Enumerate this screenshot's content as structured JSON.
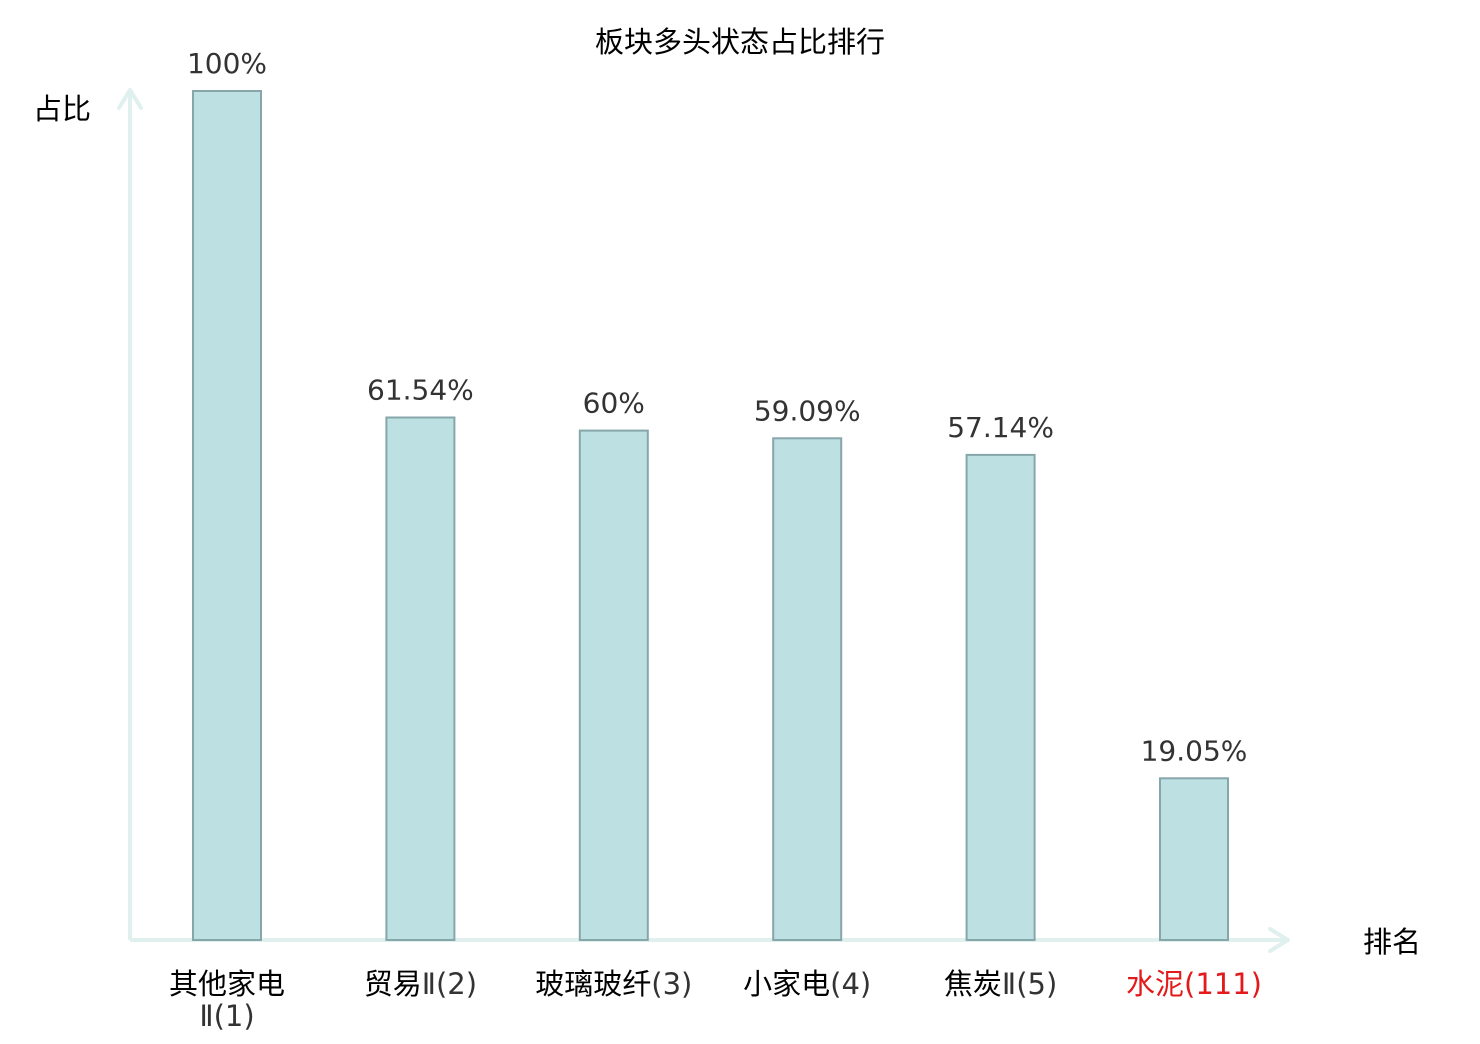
{
  "chart_data": {
    "type": "bar",
    "title": "板块多头状态占比排行",
    "ylabel": "占比",
    "xlabel": "排名",
    "ylim": [
      0,
      100
    ],
    "grid": false,
    "categories": [
      "其他家电Ⅱ(1)",
      "贸易Ⅱ(2)",
      "玻璃玻纤(3)",
      "小家电(4)",
      "焦炭Ⅱ(5)",
      "水泥(111)"
    ],
    "category_lines": [
      [
        {
          "text": "其他家电",
          "cjk": true
        },
        {
          "text": "Ⅱ(1)",
          "cjk": false
        }
      ],
      [
        {
          "text": "贸易",
          "cjk": true
        },
        {
          "text": "Ⅱ(2)",
          "cjk": false
        }
      ],
      [
        {
          "text": "玻璃玻纤",
          "cjk": true
        },
        {
          "text": "(3)",
          "cjk": false
        }
      ],
      [
        {
          "text": "小家电",
          "cjk": true
        },
        {
          "text": "(4)",
          "cjk": false
        }
      ],
      [
        {
          "text": "焦炭",
          "cjk": true
        },
        {
          "text": "Ⅱ(5)",
          "cjk": false
        }
      ],
      [
        {
          "text": "水泥",
          "cjk": true
        },
        {
          "text": "(111)",
          "cjk": false
        }
      ]
    ],
    "values": [
      100,
      61.54,
      60,
      59.09,
      57.14,
      19.05
    ],
    "value_labels": [
      "100%",
      "61.54%",
      "60%",
      "59.09%",
      "57.14%",
      "19.05%"
    ],
    "highlight_index": 5,
    "colors": {
      "bar_fill": "#bde0e3",
      "bar_stroke": "#87a6aa",
      "axis": "#dff0ee",
      "text": "#333333",
      "highlight_text": "#e31a1c"
    }
  }
}
